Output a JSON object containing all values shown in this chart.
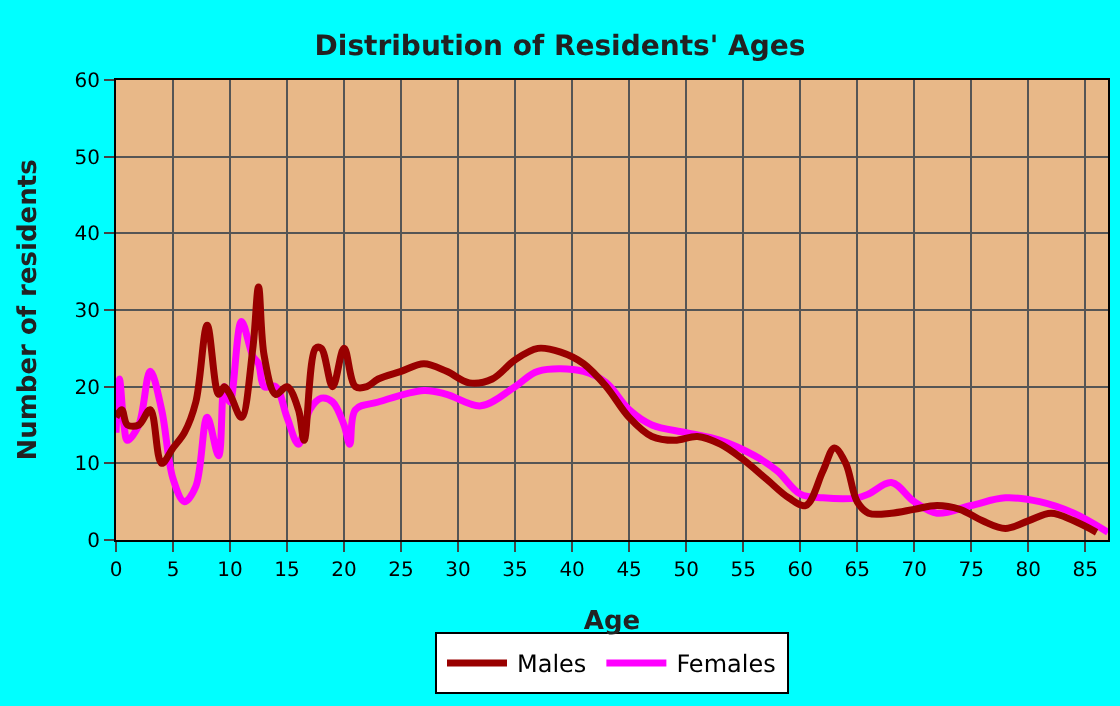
{
  "chart_data": {
    "type": "line",
    "title": "Distribution of Residents' Ages",
    "xlabel": "Age",
    "ylabel": "Number of residents",
    "xlim": [
      0,
      87
    ],
    "xticks": [
      0,
      5,
      10,
      15,
      20,
      25,
      30,
      35,
      40,
      45,
      50,
      55,
      60,
      65,
      70,
      75,
      80,
      85
    ],
    "ylim": [
      0,
      60
    ],
    "yticks": [
      0,
      10,
      20,
      30,
      40,
      50,
      60
    ],
    "grid": true,
    "legend": "bottom",
    "marker": "none",
    "line_style": "solid",
    "series": [
      {
        "name": "Males",
        "color": "#990000",
        "x": [
          0,
          0.5,
          1,
          2,
          3,
          4,
          5,
          6,
          7,
          8,
          9,
          9.5,
          10,
          11,
          12,
          12.5,
          13,
          14,
          15,
          16,
          16.5,
          17.5,
          18,
          19,
          20,
          21,
          22,
          23,
          25,
          27,
          29,
          31,
          33,
          35,
          37,
          39,
          41,
          43,
          45,
          47,
          49,
          51,
          53,
          55,
          57,
          59,
          60.5,
          62,
          63,
          64,
          65,
          66,
          68,
          70,
          72,
          74,
          76,
          78,
          80,
          82,
          84,
          86
        ],
        "values": [
          16,
          17,
          15,
          15,
          17,
          10,
          12,
          14,
          18,
          28,
          19,
          20,
          19,
          16,
          25,
          33,
          24,
          19,
          20,
          17,
          13,
          25,
          25,
          20,
          25,
          20,
          20,
          21,
          22,
          23,
          22,
          20.5,
          21,
          23.5,
          25,
          24.5,
          23,
          20,
          16,
          13.5,
          13,
          13.5,
          12.5,
          10.5,
          8,
          5.5,
          4.5,
          9,
          12,
          10,
          5,
          3.5,
          3.5,
          4,
          4.5,
          4,
          2.5,
          1.5,
          2.5,
          3.5,
          2.5,
          1
        ]
      },
      {
        "name": "Females",
        "color": "#ff00ff",
        "x": [
          0,
          0.3,
          0.7,
          1,
          2,
          3,
          4,
          5,
          6,
          7,
          8,
          9,
          9.5,
          10,
          11,
          12,
          12.5,
          13,
          14,
          15,
          16,
          17,
          18,
          19,
          20,
          20.5,
          21,
          23,
          27,
          29,
          32,
          35,
          37,
          41,
          43,
          45,
          47,
          50,
          53,
          56,
          58,
          60,
          62,
          65,
          66,
          68,
          70,
          72,
          75,
          78,
          81,
          84,
          87
        ],
        "values": [
          14,
          21,
          15,
          13,
          15,
          22,
          17,
          8,
          5,
          7,
          16,
          11,
          20,
          18,
          28.5,
          24,
          23,
          20,
          20,
          16,
          12.5,
          17,
          18.5,
          18,
          15,
          12.5,
          17,
          18,
          19.5,
          19,
          17.5,
          20,
          22,
          22,
          20.5,
          17,
          15,
          14,
          13,
          11,
          9,
          6,
          5.5,
          5.5,
          6,
          7.5,
          5,
          3.5,
          4.5,
          5.5,
          5,
          3.5,
          1
        ]
      }
    ]
  }
}
